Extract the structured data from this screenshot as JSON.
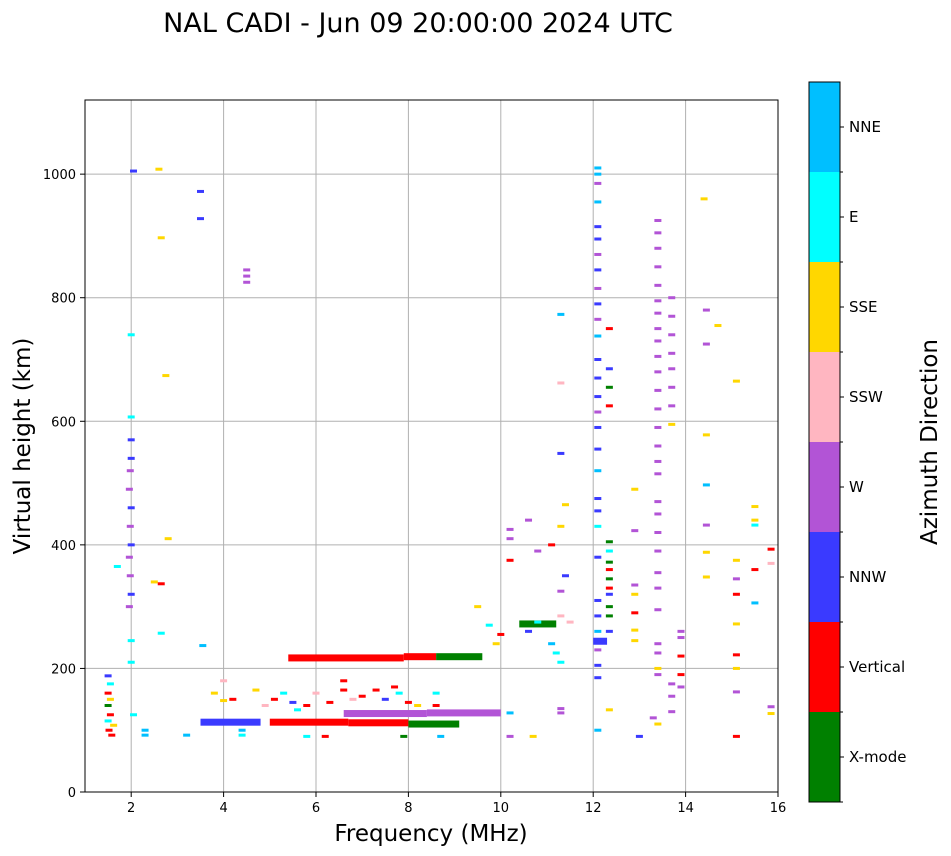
{
  "chart_data": {
    "type": "scatter",
    "title": "NAL CADI - Jun 09 20:00:00 2024 UTC",
    "xlabel": "Frequency (MHz)",
    "ylabel": "Virtual height (km)",
    "colorbar_label": "Azimuth Direction",
    "xlim": [
      1,
      16
    ],
    "ylim": [
      0,
      1120
    ],
    "xticks": [
      2,
      4,
      6,
      8,
      10,
      12,
      14,
      16
    ],
    "yticks": [
      0,
      200,
      400,
      600,
      800,
      1000
    ],
    "grid": true,
    "categories": [
      {
        "name": "X-mode",
        "color": "#008000"
      },
      {
        "name": "Vertical",
        "color": "#ff0000"
      },
      {
        "name": "NNW",
        "color": "#3a3aff"
      },
      {
        "name": "W",
        "color": "#b254d6"
      },
      {
        "name": "SSW",
        "color": "#ffb6c1"
      },
      {
        "name": "SSE",
        "color": "#ffd700"
      },
      {
        "name": "E",
        "color": "#00ffff"
      },
      {
        "name": "NNE",
        "color": "#00bfff"
      }
    ],
    "segments": [
      {
        "dir": "Vertical",
        "x0": 5.4,
        "x1": 7.9,
        "y": 217
      },
      {
        "dir": "Vertical",
        "x0": 7.9,
        "x1": 8.6,
        "y": 219
      },
      {
        "dir": "X-mode",
        "x0": 8.6,
        "x1": 9.6,
        "y": 219
      },
      {
        "dir": "Vertical",
        "x0": 5.0,
        "x1": 6.7,
        "y": 113
      },
      {
        "dir": "Vertical",
        "x0": 6.7,
        "x1": 8.0,
        "y": 112
      },
      {
        "dir": "X-mode",
        "x0": 8.0,
        "x1": 9.1,
        "y": 110
      },
      {
        "dir": "W",
        "x0": 8.4,
        "x1": 10.0,
        "y": 128
      },
      {
        "dir": "W",
        "x0": 6.6,
        "x1": 8.4,
        "y": 127
      },
      {
        "dir": "NNW",
        "x0": 3.5,
        "x1": 4.8,
        "y": 113
      },
      {
        "dir": "X-mode",
        "x0": 10.4,
        "x1": 11.2,
        "y": 272
      },
      {
        "dir": "NNW",
        "x0": 12.0,
        "x1": 12.3,
        "y": 244
      }
    ],
    "points": [
      {
        "dir": "NNW",
        "x": 2.05,
        "y": 1005
      },
      {
        "dir": "SSE",
        "x": 2.6,
        "y": 1008
      },
      {
        "dir": "NNW",
        "x": 3.5,
        "y": 972
      },
      {
        "dir": "NNW",
        "x": 3.5,
        "y": 928
      },
      {
        "dir": "SSE",
        "x": 2.65,
        "y": 897
      },
      {
        "dir": "W",
        "x": 4.5,
        "y": 845
      },
      {
        "dir": "W",
        "x": 4.5,
        "y": 835
      },
      {
        "dir": "W",
        "x": 4.5,
        "y": 825
      },
      {
        "dir": "E",
        "x": 2.0,
        "y": 740
      },
      {
        "dir": "SSE",
        "x": 2.75,
        "y": 674
      },
      {
        "dir": "E",
        "x": 2.0,
        "y": 607
      },
      {
        "dir": "NNW",
        "x": 2.0,
        "y": 570
      },
      {
        "dir": "NNW",
        "x": 2.0,
        "y": 540
      },
      {
        "dir": "W",
        "x": 1.98,
        "y": 520
      },
      {
        "dir": "W",
        "x": 1.96,
        "y": 490
      },
      {
        "dir": "NNW",
        "x": 2.0,
        "y": 460
      },
      {
        "dir": "W",
        "x": 1.98,
        "y": 430
      },
      {
        "dir": "NNW",
        "x": 2.0,
        "y": 400
      },
      {
        "dir": "W",
        "x": 1.96,
        "y": 380
      },
      {
        "dir": "W",
        "x": 1.98,
        "y": 350
      },
      {
        "dir": "NNW",
        "x": 2.0,
        "y": 320
      },
      {
        "dir": "W",
        "x": 1.96,
        "y": 300
      },
      {
        "dir": "SSE",
        "x": 2.8,
        "y": 410
      },
      {
        "dir": "SSE",
        "x": 2.5,
        "y": 340
      },
      {
        "dir": "Vertical",
        "x": 2.65,
        "y": 337
      },
      {
        "dir": "E",
        "x": 1.7,
        "y": 365
      },
      {
        "dir": "E",
        "x": 2.65,
        "y": 257
      },
      {
        "dir": "NNE",
        "x": 3.55,
        "y": 237
      },
      {
        "dir": "E",
        "x": 2.0,
        "y": 245
      },
      {
        "dir": "E",
        "x": 2.0,
        "y": 210
      },
      {
        "dir": "NNW",
        "x": 1.5,
        "y": 188
      },
      {
        "dir": "E",
        "x": 1.55,
        "y": 175
      },
      {
        "dir": "Vertical",
        "x": 1.5,
        "y": 160
      },
      {
        "dir": "SSE",
        "x": 1.55,
        "y": 150
      },
      {
        "dir": "X-mode",
        "x": 1.5,
        "y": 140
      },
      {
        "dir": "Vertical",
        "x": 1.55,
        "y": 125
      },
      {
        "dir": "E",
        "x": 1.5,
        "y": 115
      },
      {
        "dir": "Vertical",
        "x": 1.52,
        "y": 100
      },
      {
        "dir": "Vertical",
        "x": 1.58,
        "y": 92
      },
      {
        "dir": "SSE",
        "x": 1.62,
        "y": 108
      },
      {
        "dir": "NNE",
        "x": 2.3,
        "y": 100
      },
      {
        "dir": "NNE",
        "x": 2.3,
        "y": 92
      },
      {
        "dir": "E",
        "x": 2.05,
        "y": 125
      },
      {
        "dir": "NNE",
        "x": 3.2,
        "y": 92
      },
      {
        "dir": "NNE",
        "x": 4.4,
        "y": 100
      },
      {
        "dir": "E",
        "x": 4.4,
        "y": 92
      },
      {
        "dir": "SSE",
        "x": 3.8,
        "y": 160
      },
      {
        "dir": "SSE",
        "x": 4.0,
        "y": 148
      },
      {
        "dir": "SSW",
        "x": 4.0,
        "y": 180
      },
      {
        "dir": "Vertical",
        "x": 4.2,
        "y": 150
      },
      {
        "dir": "SSE",
        "x": 4.7,
        "y": 165
      },
      {
        "dir": "SSW",
        "x": 4.9,
        "y": 140
      },
      {
        "dir": "Vertical",
        "x": 5.1,
        "y": 150
      },
      {
        "dir": "E",
        "x": 5.3,
        "y": 160
      },
      {
        "dir": "NNW",
        "x": 5.5,
        "y": 145
      },
      {
        "dir": "E",
        "x": 5.6,
        "y": 133
      },
      {
        "dir": "Vertical",
        "x": 5.8,
        "y": 140
      },
      {
        "dir": "SSW",
        "x": 6.0,
        "y": 160
      },
      {
        "dir": "Vertical",
        "x": 6.3,
        "y": 145
      },
      {
        "dir": "Vertical",
        "x": 6.6,
        "y": 180
      },
      {
        "dir": "Vertical",
        "x": 6.6,
        "y": 165
      },
      {
        "dir": "SSW",
        "x": 6.8,
        "y": 150
      },
      {
        "dir": "Vertical",
        "x": 7.0,
        "y": 155
      },
      {
        "dir": "Vertical",
        "x": 7.3,
        "y": 165
      },
      {
        "dir": "NNW",
        "x": 7.5,
        "y": 150
      },
      {
        "dir": "Vertical",
        "x": 7.7,
        "y": 170
      },
      {
        "dir": "E",
        "x": 7.8,
        "y": 160
      },
      {
        "dir": "Vertical",
        "x": 8.0,
        "y": 145
      },
      {
        "dir": "SSE",
        "x": 8.2,
        "y": 140
      },
      {
        "dir": "E",
        "x": 8.6,
        "y": 160
      },
      {
        "dir": "Vertical",
        "x": 8.6,
        "y": 140
      },
      {
        "dir": "NNE",
        "x": 8.7,
        "y": 90
      },
      {
        "dir": "Vertical",
        "x": 6.2,
        "y": 90
      },
      {
        "dir": "E",
        "x": 5.8,
        "y": 90
      },
      {
        "dir": "X-mode",
        "x": 7.9,
        "y": 90
      },
      {
        "dir": "SSE",
        "x": 9.5,
        "y": 300
      },
      {
        "dir": "E",
        "x": 9.75,
        "y": 270
      },
      {
        "dir": "SSE",
        "x": 9.9,
        "y": 240
      },
      {
        "dir": "Vertical",
        "x": 10.0,
        "y": 255
      },
      {
        "dir": "NNE",
        "x": 10.2,
        "y": 128
      },
      {
        "dir": "W",
        "x": 10.2,
        "y": 90
      },
      {
        "dir": "SSE",
        "x": 10.7,
        "y": 90
      },
      {
        "dir": "W",
        "x": 10.2,
        "y": 425
      },
      {
        "dir": "W",
        "x": 10.2,
        "y": 410
      },
      {
        "dir": "Vertical",
        "x": 10.2,
        "y": 375
      },
      {
        "dir": "W",
        "x": 10.6,
        "y": 440
      },
      {
        "dir": "W",
        "x": 10.8,
        "y": 390
      },
      {
        "dir": "Vertical",
        "x": 11.1,
        "y": 400
      },
      {
        "dir": "SSE",
        "x": 11.3,
        "y": 430
      },
      {
        "dir": "SSE",
        "x": 11.4,
        "y": 465
      },
      {
        "dir": "NNE",
        "x": 11.3,
        "y": 773
      },
      {
        "dir": "SSW",
        "x": 11.3,
        "y": 662
      },
      {
        "dir": "NNW",
        "x": 11.3,
        "y": 548
      },
      {
        "dir": "NNW",
        "x": 11.4,
        "y": 350
      },
      {
        "dir": "W",
        "x": 11.3,
        "y": 325
      },
      {
        "dir": "SSW",
        "x": 11.3,
        "y": 285
      },
      {
        "dir": "SSW",
        "x": 11.5,
        "y": 275
      },
      {
        "dir": "NNW",
        "x": 10.6,
        "y": 260
      },
      {
        "dir": "E",
        "x": 10.8,
        "y": 275
      },
      {
        "dir": "NNE",
        "x": 11.1,
        "y": 240
      },
      {
        "dir": "E",
        "x": 11.2,
        "y": 225
      },
      {
        "dir": "E",
        "x": 11.3,
        "y": 210
      },
      {
        "dir": "W",
        "x": 11.3,
        "y": 135
      },
      {
        "dir": "W",
        "x": 11.3,
        "y": 128
      },
      {
        "dir": "NNE",
        "x": 12.1,
        "y": 1010
      },
      {
        "dir": "NNE",
        "x": 12.1,
        "y": 1000
      },
      {
        "dir": "W",
        "x": 12.1,
        "y": 985
      },
      {
        "dir": "NNE",
        "x": 12.1,
        "y": 955
      },
      {
        "dir": "NNW",
        "x": 12.1,
        "y": 915
      },
      {
        "dir": "NNW",
        "x": 12.1,
        "y": 895
      },
      {
        "dir": "W",
        "x": 12.1,
        "y": 870
      },
      {
        "dir": "NNW",
        "x": 12.1,
        "y": 845
      },
      {
        "dir": "W",
        "x": 12.1,
        "y": 815
      },
      {
        "dir": "NNW",
        "x": 12.1,
        "y": 790
      },
      {
        "dir": "W",
        "x": 12.1,
        "y": 765
      },
      {
        "dir": "NNE",
        "x": 12.1,
        "y": 738
      },
      {
        "dir": "NNW",
        "x": 12.1,
        "y": 700
      },
      {
        "dir": "NNW",
        "x": 12.1,
        "y": 670
      },
      {
        "dir": "NNW",
        "x": 12.1,
        "y": 640
      },
      {
        "dir": "W",
        "x": 12.1,
        "y": 615
      },
      {
        "dir": "NNW",
        "x": 12.1,
        "y": 590
      },
      {
        "dir": "NNW",
        "x": 12.1,
        "y": 555
      },
      {
        "dir": "NNE",
        "x": 12.1,
        "y": 520
      },
      {
        "dir": "NNW",
        "x": 12.1,
        "y": 475
      },
      {
        "dir": "NNW",
        "x": 12.1,
        "y": 455
      },
      {
        "dir": "E",
        "x": 12.1,
        "y": 430
      },
      {
        "dir": "NNW",
        "x": 12.1,
        "y": 380
      },
      {
        "dir": "NNW",
        "x": 12.1,
        "y": 310
      },
      {
        "dir": "NNW",
        "x": 12.1,
        "y": 285
      },
      {
        "dir": "NNE",
        "x": 12.1,
        "y": 260
      },
      {
        "dir": "W",
        "x": 12.1,
        "y": 230
      },
      {
        "dir": "NNW",
        "x": 12.1,
        "y": 205
      },
      {
        "dir": "NNW",
        "x": 12.1,
        "y": 185
      },
      {
        "dir": "NNE",
        "x": 12.1,
        "y": 100
      },
      {
        "dir": "Vertical",
        "x": 12.35,
        "y": 750
      },
      {
        "dir": "NNW",
        "x": 12.35,
        "y": 685
      },
      {
        "dir": "X-mode",
        "x": 12.35,
        "y": 655
      },
      {
        "dir": "Vertical",
        "x": 12.35,
        "y": 625
      },
      {
        "dir": "X-mode",
        "x": 12.35,
        "y": 405
      },
      {
        "dir": "E",
        "x": 12.35,
        "y": 390
      },
      {
        "dir": "X-mode",
        "x": 12.35,
        "y": 372
      },
      {
        "dir": "Vertical",
        "x": 12.35,
        "y": 360
      },
      {
        "dir": "X-mode",
        "x": 12.35,
        "y": 345
      },
      {
        "dir": "Vertical",
        "x": 12.35,
        "y": 330
      },
      {
        "dir": "NNW",
        "x": 12.35,
        "y": 320
      },
      {
        "dir": "X-mode",
        "x": 12.35,
        "y": 300
      },
      {
        "dir": "X-mode",
        "x": 12.35,
        "y": 285
      },
      {
        "dir": "NNW",
        "x": 12.35,
        "y": 260
      },
      {
        "dir": "SSE",
        "x": 12.35,
        "y": 133
      },
      {
        "dir": "SSE",
        "x": 12.9,
        "y": 490
      },
      {
        "dir": "W",
        "x": 12.9,
        "y": 423
      },
      {
        "dir": "W",
        "x": 12.9,
        "y": 335
      },
      {
        "dir": "SSE",
        "x": 12.9,
        "y": 320
      },
      {
        "dir": "Vertical",
        "x": 12.9,
        "y": 290
      },
      {
        "dir": "SSE",
        "x": 12.9,
        "y": 262
      },
      {
        "dir": "SSE",
        "x": 12.9,
        "y": 245
      },
      {
        "dir": "NNW",
        "x": 13.0,
        "y": 90
      },
      {
        "dir": "W",
        "x": 13.3,
        "y": 120
      },
      {
        "dir": "W",
        "x": 13.4,
        "y": 925
      },
      {
        "dir": "W",
        "x": 13.4,
        "y": 905
      },
      {
        "dir": "W",
        "x": 13.4,
        "y": 880
      },
      {
        "dir": "W",
        "x": 13.4,
        "y": 850
      },
      {
        "dir": "W",
        "x": 13.4,
        "y": 820
      },
      {
        "dir": "W",
        "x": 13.4,
        "y": 795
      },
      {
        "dir": "W",
        "x": 13.4,
        "y": 775
      },
      {
        "dir": "W",
        "x": 13.4,
        "y": 750
      },
      {
        "dir": "W",
        "x": 13.4,
        "y": 730
      },
      {
        "dir": "W",
        "x": 13.4,
        "y": 705
      },
      {
        "dir": "W",
        "x": 13.4,
        "y": 680
      },
      {
        "dir": "W",
        "x": 13.4,
        "y": 650
      },
      {
        "dir": "W",
        "x": 13.4,
        "y": 620
      },
      {
        "dir": "W",
        "x": 13.4,
        "y": 590
      },
      {
        "dir": "W",
        "x": 13.4,
        "y": 560
      },
      {
        "dir": "W",
        "x": 13.4,
        "y": 535
      },
      {
        "dir": "W",
        "x": 13.4,
        "y": 515
      },
      {
        "dir": "W",
        "x": 13.4,
        "y": 470
      },
      {
        "dir": "W",
        "x": 13.4,
        "y": 450
      },
      {
        "dir": "W",
        "x": 13.4,
        "y": 420
      },
      {
        "dir": "W",
        "x": 13.4,
        "y": 390
      },
      {
        "dir": "W",
        "x": 13.4,
        "y": 355
      },
      {
        "dir": "W",
        "x": 13.4,
        "y": 330
      },
      {
        "dir": "W",
        "x": 13.4,
        "y": 295
      },
      {
        "dir": "W",
        "x": 13.4,
        "y": 240
      },
      {
        "dir": "W",
        "x": 13.4,
        "y": 225
      },
      {
        "dir": "SSE",
        "x": 13.4,
        "y": 200
      },
      {
        "dir": "W",
        "x": 13.4,
        "y": 190
      },
      {
        "dir": "SSE",
        "x": 13.4,
        "y": 110
      },
      {
        "dir": "W",
        "x": 13.7,
        "y": 800
      },
      {
        "dir": "W",
        "x": 13.7,
        "y": 770
      },
      {
        "dir": "W",
        "x": 13.7,
        "y": 740
      },
      {
        "dir": "W",
        "x": 13.7,
        "y": 710
      },
      {
        "dir": "W",
        "x": 13.7,
        "y": 685
      },
      {
        "dir": "W",
        "x": 13.7,
        "y": 655
      },
      {
        "dir": "W",
        "x": 13.7,
        "y": 625
      },
      {
        "dir": "SSE",
        "x": 13.7,
        "y": 595
      },
      {
        "dir": "W",
        "x": 13.7,
        "y": 175
      },
      {
        "dir": "W",
        "x": 13.7,
        "y": 155
      },
      {
        "dir": "W",
        "x": 13.7,
        "y": 130
      },
      {
        "dir": "W",
        "x": 13.9,
        "y": 260
      },
      {
        "dir": "W",
        "x": 13.9,
        "y": 250
      },
      {
        "dir": "Vertical",
        "x": 13.9,
        "y": 220
      },
      {
        "dir": "Vertical",
        "x": 13.9,
        "y": 190
      },
      {
        "dir": "W",
        "x": 13.9,
        "y": 170
      },
      {
        "dir": "SSE",
        "x": 14.4,
        "y": 960
      },
      {
        "dir": "W",
        "x": 14.45,
        "y": 780
      },
      {
        "dir": "W",
        "x": 14.45,
        "y": 725
      },
      {
        "dir": "SSE",
        "x": 14.45,
        "y": 578
      },
      {
        "dir": "NNE",
        "x": 14.45,
        "y": 497
      },
      {
        "dir": "W",
        "x": 14.45,
        "y": 432
      },
      {
        "dir": "SSE",
        "x": 14.45,
        "y": 388
      },
      {
        "dir": "SSE",
        "x": 14.45,
        "y": 348
      },
      {
        "dir": "SSE",
        "x": 14.7,
        "y": 755
      },
      {
        "dir": "SSE",
        "x": 15.1,
        "y": 665
      },
      {
        "dir": "SSE",
        "x": 15.1,
        "y": 375
      },
      {
        "dir": "W",
        "x": 15.1,
        "y": 345
      },
      {
        "dir": "Vertical",
        "x": 15.1,
        "y": 320
      },
      {
        "dir": "SSE",
        "x": 15.1,
        "y": 272
      },
      {
        "dir": "Vertical",
        "x": 15.1,
        "y": 222
      },
      {
        "dir": "SSE",
        "x": 15.1,
        "y": 200
      },
      {
        "dir": "W",
        "x": 15.1,
        "y": 162
      },
      {
        "dir": "Vertical",
        "x": 15.1,
        "y": 90
      },
      {
        "dir": "SSE",
        "x": 15.5,
        "y": 462
      },
      {
        "dir": "SSE",
        "x": 15.5,
        "y": 440
      },
      {
        "dir": "E",
        "x": 15.5,
        "y": 432
      },
      {
        "dir": "Vertical",
        "x": 15.5,
        "y": 360
      },
      {
        "dir": "NNE",
        "x": 15.5,
        "y": 306
      },
      {
        "dir": "Vertical",
        "x": 15.85,
        "y": 393
      },
      {
        "dir": "SSW",
        "x": 15.85,
        "y": 370
      },
      {
        "dir": "W",
        "x": 15.85,
        "y": 138
      },
      {
        "dir": "SSE",
        "x": 15.85,
        "y": 127
      }
    ]
  }
}
